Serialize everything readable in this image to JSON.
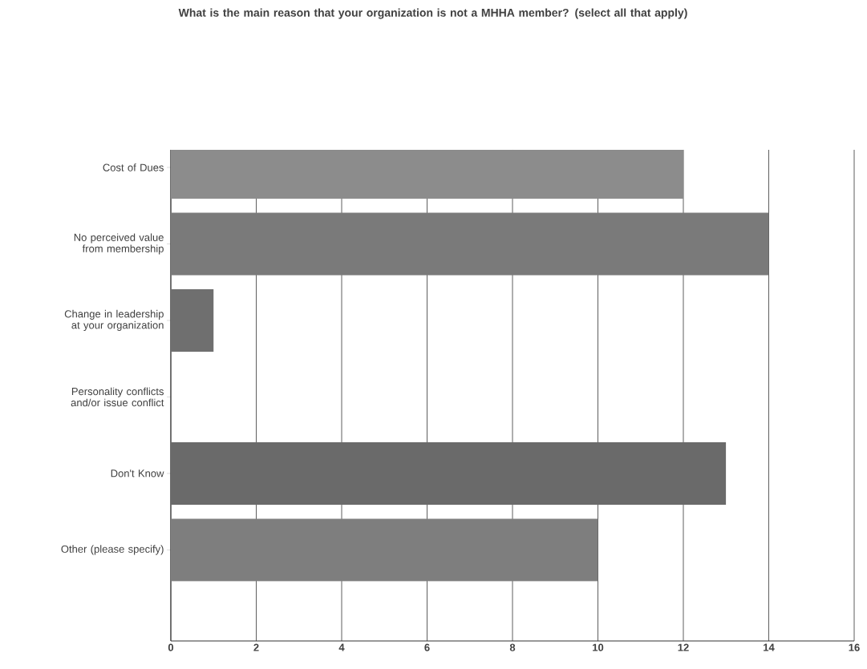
{
  "chart_data": {
    "type": "bar",
    "orientation": "horizontal",
    "title": "What is the main reason that your organization is not a MHHA member? (select all that apply)",
    "categories": [
      "Cost of Dues",
      "No perceived value from membership",
      "Change in leadership at your organization",
      "Personality conflicts and/or issue conflict",
      "Don't Know",
      "Other (please specify)"
    ],
    "values": [
      12,
      14,
      1,
      0,
      13,
      10
    ],
    "colors": [
      "#8c8c8c",
      "#7a7a7a",
      "#6f6f6f",
      "#6e6e6e",
      "#6a6a6a",
      "#7e7e7e"
    ],
    "xlim": [
      0,
      16
    ],
    "xticks": [
      0,
      2,
      4,
      6,
      8,
      10,
      12,
      14,
      16
    ],
    "grid": "x"
  }
}
